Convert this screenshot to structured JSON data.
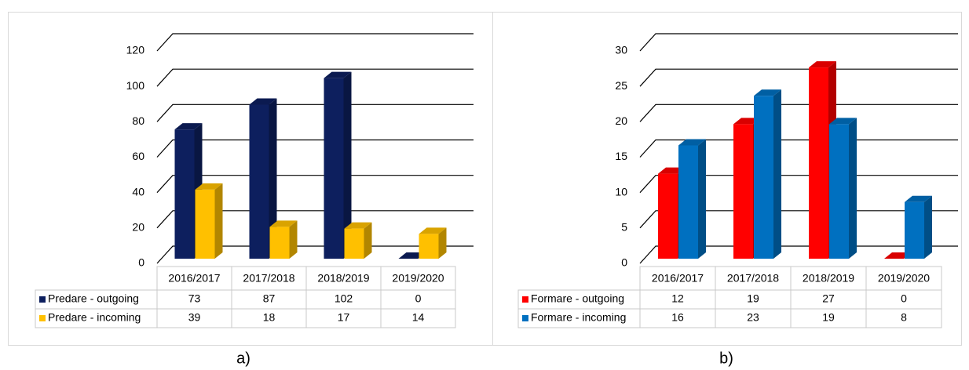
{
  "chart_data": [
    {
      "type": "bar",
      "label": "a)",
      "categories": [
        "2016/2017",
        "2017/2018",
        "2018/2019",
        "2019/2020"
      ],
      "series": [
        {
          "name": "Predare - outgoing",
          "color": "#0d1f5e",
          "values": [
            73,
            87,
            102,
            0
          ]
        },
        {
          "name": "Predare - incoming",
          "color": "#ffc000",
          "values": [
            39,
            18,
            17,
            14
          ]
        }
      ],
      "ylim": [
        0,
        120
      ],
      "yticks": [
        0,
        20,
        40,
        60,
        80,
        100,
        120
      ],
      "grid": true
    },
    {
      "type": "bar",
      "label": "b)",
      "categories": [
        "2016/2017",
        "2017/2018",
        "2018/2019",
        "2019/2020"
      ],
      "series": [
        {
          "name": "Formare - outgoing",
          "color": "#ff0000",
          "values": [
            12,
            19,
            27,
            0
          ]
        },
        {
          "name": "Formare - incoming",
          "color": "#0070c0",
          "values": [
            16,
            23,
            19,
            8
          ]
        }
      ],
      "ylim": [
        0,
        30
      ],
      "yticks": [
        0,
        5,
        10,
        15,
        20,
        25,
        30
      ],
      "grid": true
    }
  ]
}
